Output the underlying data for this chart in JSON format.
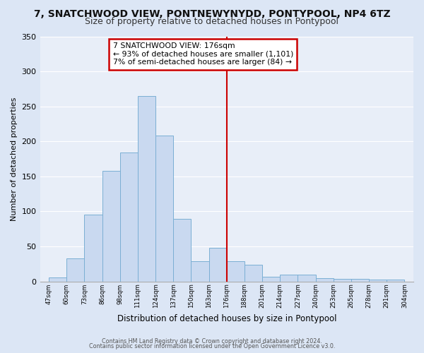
{
  "title1": "7, SNATCHWOOD VIEW, PONTNEWYNYDD, PONTYPOOL, NP4 6TZ",
  "title2": "Size of property relative to detached houses in Pontypool",
  "xlabel": "Distribution of detached houses by size in Pontypool",
  "ylabel": "Number of detached properties",
  "categories": [
    "47sqm",
    "60sqm",
    "73sqm",
    "86sqm",
    "98sqm",
    "111sqm",
    "124sqm",
    "137sqm",
    "150sqm",
    "163sqm",
    "176sqm",
    "188sqm",
    "201sqm",
    "214sqm",
    "227sqm",
    "240sqm",
    "253sqm",
    "265sqm",
    "278sqm",
    "291sqm",
    "304sqm"
  ],
  "values": [
    6,
    33,
    95,
    158,
    184,
    265,
    208,
    89,
    29,
    48,
    29,
    24,
    7,
    10,
    10,
    5,
    4,
    4,
    3,
    3
  ],
  "bar_color": "#c9d9f0",
  "bar_edge_color": "#7bafd4",
  "vline_color": "#cc0000",
  "ylim": [
    0,
    350
  ],
  "yticks": [
    0,
    50,
    100,
    150,
    200,
    250,
    300,
    350
  ],
  "annotation_title": "7 SNATCHWOOD VIEW: 176sqm",
  "annotation_line1": "← 93% of detached houses are smaller (1,101)",
  "annotation_line2": "7% of semi-detached houses are larger (84) →",
  "annotation_box_color": "#ffffff",
  "annotation_border_color": "#cc0000",
  "footer1": "Contains HM Land Registry data © Crown copyright and database right 2024.",
  "footer2": "Contains public sector information licensed under the Open Government Licence v3.0.",
  "background_color": "#dce6f5",
  "plot_bg_color": "#e8eef8",
  "title1_fontsize": 10,
  "title2_fontsize": 9,
  "grid_color": "#ffffff"
}
